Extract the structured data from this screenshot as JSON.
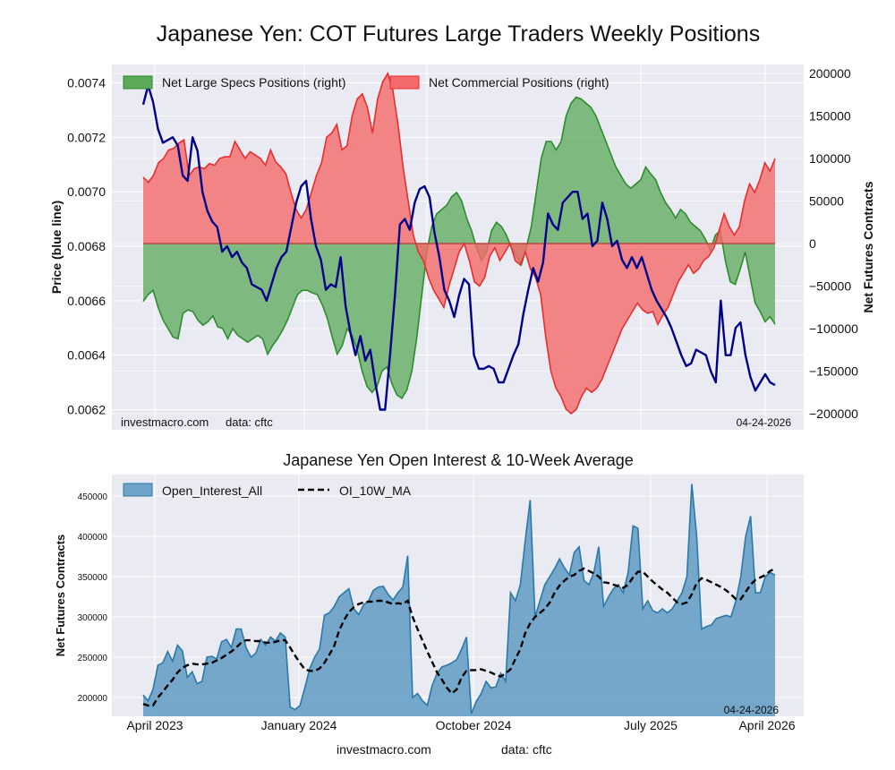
{
  "page": {
    "title": "Japanese Yen: COT Futures Large Traders Weekly Positions",
    "footer_source": "investmacro.com",
    "footer_data": "data: cftc"
  },
  "top_panel": {
    "left_axis_label": "Price (blue line)",
    "right_axis_label": "Net Futures Contracts",
    "watermark_source": "investmacro.com",
    "watermark_data": "data: cftc",
    "date_stamp": "04-24-2026",
    "legend": {
      "specs_label": "Net Large Specs Positions (right)",
      "comm_label": "Net Commercial Positions (right)"
    },
    "left_ticks": [
      "0.0062",
      "0.0064",
      "0.0066",
      "0.0068",
      "0.0070",
      "0.0072",
      "0.0074"
    ],
    "right_ticks": [
      "−200000",
      "−150000",
      "−100000",
      "−50000",
      "0",
      "50000",
      "100000",
      "150000",
      "200000"
    ]
  },
  "bottom_panel": {
    "title": "Japanese Yen Open Interest & 10-Week Average",
    "y_axis_label": "Net Futures Contracts",
    "date_stamp": "04-24-2026",
    "legend": {
      "oi_label": "Open_Interest_All",
      "ma_label": "OI_10W_MA"
    },
    "y_ticks": [
      "200000",
      "250000",
      "300000",
      "350000",
      "400000",
      "450000"
    ],
    "x_ticks": [
      "April 2023",
      "January 2024",
      "October 2024",
      "July 2025",
      "April 2026"
    ]
  },
  "colors": {
    "specs_fill": "#5aaa5a",
    "specs_line": "#2e8b2e",
    "comm_fill": "#f56a6a",
    "comm_line": "#e62e2e",
    "price_line": "#00008b",
    "oi_fill": "#6fa3c8",
    "oi_line": "#2a79a8",
    "ma_line": "#000000",
    "plot_bg": "#eaeaf2",
    "grid": "#ffffff"
  },
  "chart_data": [
    {
      "type": "area",
      "name": "Japanese Yen COT positions",
      "x_start": "2023-04-04",
      "x_interval": "weekly",
      "y_left_range": [
        0.0062,
        0.0074
      ],
      "y_right_range": [
        -200000,
        200000
      ],
      "series": [
        {
          "name": "Net Large Specs Positions (right)",
          "axis": "right",
          "values": [
            -68000,
            -60000,
            -55000,
            -75000,
            -90000,
            -100000,
            -110000,
            -112000,
            -82000,
            -78000,
            -80000,
            -90000,
            -96000,
            -92000,
            -85000,
            -98000,
            -100000,
            -112000,
            -100000,
            -108000,
            -112000,
            -116000,
            -112000,
            -108000,
            -112000,
            -130000,
            -120000,
            -112000,
            -102000,
            -90000,
            -75000,
            -60000,
            -55000,
            -55000,
            -58000,
            -60000,
            -72000,
            -88000,
            -110000,
            -130000,
            -120000,
            -100000,
            -108000,
            -125000,
            -150000,
            -168000,
            -175000,
            -168000,
            -150000,
            -145000,
            -165000,
            -178000,
            -182000,
            -172000,
            -150000,
            -110000,
            -60000,
            -10000,
            20000,
            35000,
            40000,
            45000,
            55000,
            60000,
            50000,
            30000,
            15000,
            -5000,
            -20000,
            -10000,
            15000,
            25000,
            20000,
            10000,
            -5000,
            -15000,
            -25000,
            -5000,
            20000,
            60000,
            100000,
            120000,
            120000,
            110000,
            120000,
            150000,
            165000,
            172000,
            170000,
            165000,
            160000,
            150000,
            135000,
            120000,
            105000,
            90000,
            80000,
            70000,
            65000,
            70000,
            75000,
            90000,
            82000,
            75000,
            60000,
            48000,
            40000,
            30000,
            40000,
            35000,
            25000,
            20000,
            15000,
            5000,
            -8000,
            10000,
            15000,
            -20000,
            -45000,
            -48000,
            -30000,
            -10000,
            -40000,
            -70000,
            -80000,
            -92000,
            -86000,
            -95000
          ]
        },
        {
          "name": "Net Commercial Positions (right)",
          "axis": "right",
          "values": [
            78000,
            72000,
            80000,
            95000,
            100000,
            110000,
            112000,
            118000,
            122000,
            80000,
            88000,
            90000,
            88000,
            94000,
            92000,
            100000,
            102000,
            102000,
            120000,
            110000,
            100000,
            108000,
            104000,
            100000,
            92000,
            110000,
            96000,
            90000,
            82000,
            60000,
            40000,
            30000,
            40000,
            60000,
            80000,
            95000,
            125000,
            130000,
            140000,
            110000,
            115000,
            150000,
            170000,
            176000,
            160000,
            130000,
            170000,
            190000,
            200000,
            180000,
            140000,
            90000,
            50000,
            10000,
            -10000,
            -20000,
            -40000,
            -55000,
            -65000,
            -75000,
            -50000,
            -30000,
            -10000,
            0,
            -20000,
            -45000,
            -50000,
            -40000,
            -15000,
            -5000,
            -20000,
            -10000,
            0,
            -20000,
            -25000,
            -10000,
            -30000,
            -40000,
            -60000,
            -110000,
            -150000,
            -170000,
            -180000,
            -195000,
            -200000,
            -195000,
            -180000,
            -170000,
            -175000,
            -170000,
            -160000,
            -145000,
            -130000,
            -115000,
            -100000,
            -90000,
            -80000,
            -70000,
            -78000,
            -82000,
            -80000,
            -95000,
            -84000,
            -75000,
            -60000,
            -45000,
            -35000,
            -25000,
            -35000,
            -30000,
            -20000,
            -15000,
            -5000,
            15000,
            35000,
            20000,
            10000,
            20000,
            50000,
            70000,
            60000,
            75000,
            95000,
            85000,
            100000
          ]
        },
        {
          "name": "Price (blue line)",
          "axis": "left",
          "values": [
            0.00732,
            0.00739,
            0.00733,
            0.00723,
            0.00718,
            0.00719,
            0.0072,
            0.00717,
            0.00706,
            0.00704,
            0.0072,
            0.00715,
            0.007,
            0.00693,
            0.00689,
            0.00687,
            0.00678,
            0.0068,
            0.00676,
            0.00678,
            0.00674,
            0.00672,
            0.00666,
            0.00665,
            0.00664,
            0.0066,
            0.00666,
            0.00672,
            0.00676,
            0.00678,
            0.00687,
            0.00696,
            0.00702,
            0.00704,
            0.0069,
            0.0068,
            0.00675,
            0.00664,
            0.00666,
            0.00665,
            0.00676,
            0.00658,
            0.00648,
            0.0064,
            0.00647,
            0.00638,
            0.00642,
            0.0063,
            0.0062,
            0.0062,
            0.0064,
            0.00662,
            0.00688,
            0.0069,
            0.00686,
            0.00696,
            0.00701,
            0.00702,
            0.00698,
            0.00685,
            0.00676,
            0.00664,
            0.0066,
            0.00654,
            0.00662,
            0.00668,
            0.00666,
            0.0064,
            0.00635,
            0.00635,
            0.00636,
            0.00635,
            0.0063,
            0.0063,
            0.00635,
            0.0064,
            0.00644,
            0.00655,
            0.00664,
            0.00672,
            0.00667,
            0.00674,
            0.00692,
            0.00688,
            0.00686,
            0.00696,
            0.00698,
            0.007,
            0.007,
            0.0069,
            0.00692,
            0.0068,
            0.00682,
            0.00696,
            0.0069,
            0.0068,
            0.00682,
            0.00675,
            0.00672,
            0.00676,
            0.00672,
            0.00676,
            0.0067,
            0.00664,
            0.0066,
            0.00657,
            0.00654,
            0.0065,
            0.00645,
            0.0064,
            0.00636,
            0.00637,
            0.00642,
            0.00641,
            0.0064,
            0.00634,
            0.0063,
            0.0066,
            0.0064,
            0.0064,
            0.0065,
            0.00652,
            0.0064,
            0.00632,
            0.00627,
            0.0063,
            0.00633,
            0.0063,
            0.00629
          ]
        }
      ]
    },
    {
      "type": "area",
      "name": "Japanese Yen Open Interest & 10-Week Average",
      "x_start": "2023-04-04",
      "x_interval": "weekly",
      "x_ticks": [
        "April 2023",
        "January 2024",
        "October 2024",
        "July 2025",
        "April 2026"
      ],
      "ylim": [
        180000,
        470000
      ],
      "series": [
        {
          "name": "Open_Interest_All",
          "values": [
            203000,
            196000,
            210000,
            240000,
            243000,
            257000,
            245000,
            265000,
            258000,
            225000,
            232000,
            217000,
            220000,
            250000,
            251000,
            248000,
            269000,
            272000,
            262000,
            285000,
            285000,
            262000,
            250000,
            255000,
            272000,
            265000,
            275000,
            270000,
            280000,
            275000,
            188000,
            185000,
            190000,
            212000,
            236000,
            250000,
            260000,
            302000,
            305000,
            313000,
            325000,
            330000,
            335000,
            310000,
            303000,
            315000,
            320000,
            333000,
            337000,
            338000,
            328000,
            321000,
            330000,
            337000,
            376000,
            200000,
            205000,
            196000,
            190000,
            215000,
            230000,
            238000,
            240000,
            243000,
            247000,
            260000,
            275000,
            180000,
            195000,
            205000,
            220000,
            212000,
            213000,
            230000,
            220000,
            330000,
            320000,
            340000,
            395000,
            445000,
            300000,
            320000,
            340000,
            350000,
            360000,
            372000,
            361000,
            352000,
            380000,
            387000,
            345000,
            340000,
            355000,
            387000,
            313000,
            325000,
            335000,
            340000,
            330000,
            355000,
            413000,
            410000,
            310000,
            320000,
            308000,
            305000,
            310000,
            305000,
            310000,
            320000,
            330000,
            350000,
            465000,
            400000,
            285000,
            288000,
            290000,
            298000,
            300000,
            302000,
            300000,
            320000,
            350000,
            400000,
            425000,
            330000,
            330000,
            350000,
            355000,
            352000
          ]
        },
        {
          "name": "OI_10W_MA",
          "values": [
            192000,
            190000,
            190000,
            200000,
            207000,
            215000,
            222000,
            231000,
            237000,
            240000,
            242000,
            241000,
            241000,
            242000,
            243000,
            246000,
            249000,
            253000,
            257000,
            262000,
            268000,
            271000,
            271000,
            270000,
            270000,
            268000,
            268000,
            269000,
            271000,
            271000,
            262000,
            252000,
            243000,
            235000,
            233000,
            233000,
            236000,
            243000,
            253000,
            264000,
            283000,
            296000,
            306000,
            312000,
            316000,
            318000,
            319000,
            319000,
            320000,
            320000,
            318000,
            316000,
            317000,
            316000,
            320000,
            300000,
            285000,
            271000,
            257000,
            244000,
            231000,
            222000,
            212000,
            205000,
            210000,
            225000,
            233000,
            234000,
            234000,
            235000,
            233000,
            231000,
            228000,
            226000,
            230000,
            235000,
            248000,
            260000,
            280000,
            292000,
            300000,
            305000,
            310000,
            318000,
            330000,
            339000,
            345000,
            350000,
            352000,
            357000,
            360000,
            357000,
            354000,
            350000,
            343000,
            342000,
            340000,
            338000,
            336000,
            340000,
            349000,
            356000,
            356000,
            350000,
            344000,
            339000,
            334000,
            330000,
            324000,
            318000,
            316000,
            318000,
            328000,
            342000,
            348000,
            346000,
            343000,
            340000,
            337000,
            333000,
            328000,
            322000,
            322000,
            331000,
            340000,
            346000,
            349000,
            352000,
            357000,
            360000
          ]
        }
      ]
    }
  ]
}
